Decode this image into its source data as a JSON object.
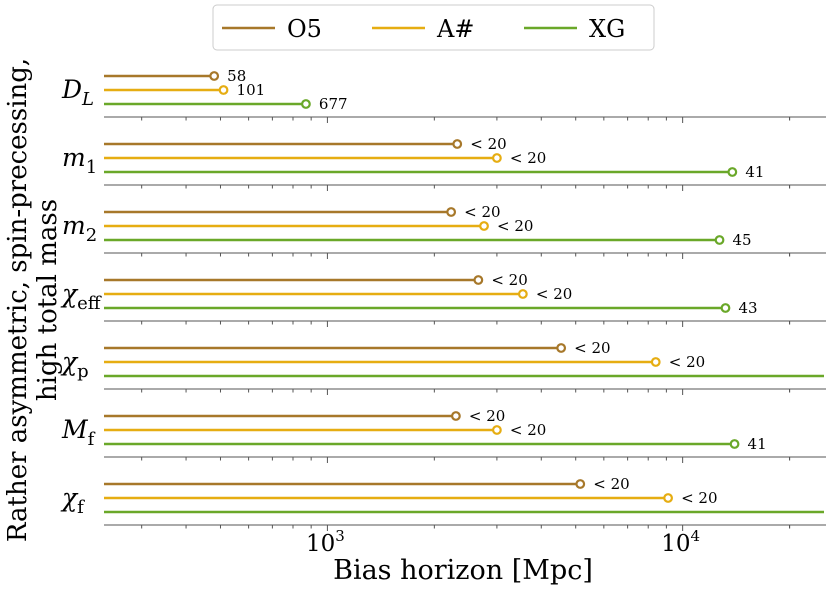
{
  "chart_data": {
    "type": "bar",
    "orientation": "horizontal",
    "xlabel": "Bias horizon [Mpc]",
    "ylabel_lines": [
      "Rather asymmetric, spin-precessing,",
      "high total mass"
    ],
    "xscale": "log",
    "xlim": [
      235,
      25000
    ],
    "ticks": [
      {
        "value": 1000,
        "base": "10",
        "exp": "3"
      },
      {
        "value": 10000,
        "base": "10",
        "exp": "4"
      }
    ],
    "legend": {
      "placement": "top-center"
    },
    "series": [
      {
        "name": "O5",
        "color": "#a7782a"
      },
      {
        "name": "A#",
        "color": "#e6ad12"
      },
      {
        "name": "XG",
        "color": "#6aa829"
      }
    ],
    "parameters": [
      {
        "sym": "D",
        "sub": "L",
        "sub_italic": true,
        "values": [
          480,
          510,
          870
        ],
        "labels": [
          "58",
          "101",
          "677"
        ],
        "marker": [
          true,
          true,
          true
        ]
      },
      {
        "sym": "m",
        "sub": "1",
        "sub_italic": false,
        "values": [
          2320,
          3000,
          13800
        ],
        "labels": [
          "< 20",
          "< 20",
          "41"
        ],
        "marker": [
          true,
          true,
          true
        ]
      },
      {
        "sym": "m",
        "sub": "2",
        "sub_italic": false,
        "values": [
          2230,
          2760,
          12700
        ],
        "labels": [
          "< 20",
          "< 20",
          "45"
        ],
        "marker": [
          true,
          true,
          true
        ]
      },
      {
        "sym": "χ",
        "sub": "eff",
        "sub_italic": false,
        "values": [
          2660,
          3550,
          13200
        ],
        "labels": [
          "< 20",
          "< 20",
          "43"
        ],
        "marker": [
          true,
          true,
          true
        ]
      },
      {
        "sym": "χ",
        "sub": "p",
        "sub_italic": false,
        "values": [
          4550,
          8400,
          25000
        ],
        "labels": [
          "< 20",
          "< 20",
          ""
        ],
        "marker": [
          true,
          true,
          false
        ]
      },
      {
        "sym": "M",
        "sub": "f",
        "sub_italic": false,
        "values": [
          2300,
          3000,
          14000
        ],
        "labels": [
          "< 20",
          "< 20",
          "41"
        ],
        "marker": [
          true,
          true,
          true
        ]
      },
      {
        "sym": "χ",
        "sub": "f",
        "sub_italic": false,
        "values": [
          5150,
          9100,
          25000
        ],
        "labels": [
          "< 20",
          "< 20",
          ""
        ],
        "marker": [
          true,
          true,
          false
        ]
      }
    ]
  }
}
